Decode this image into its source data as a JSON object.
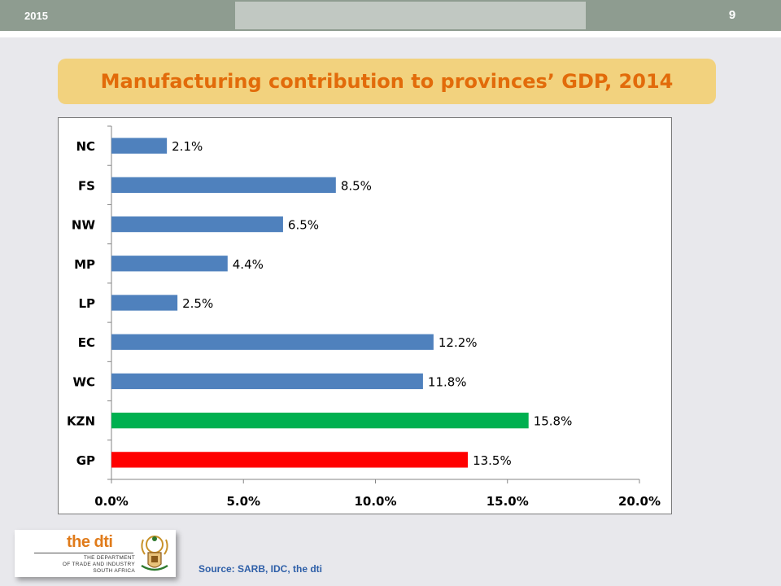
{
  "header": {
    "year": "2015",
    "page_number": "9"
  },
  "title": "Manufacturing contribution to provinces’ GDP, 2014",
  "source": "Source: SARB, IDC, the dti",
  "logo": {
    "name": "the dti",
    "subtitle_lines": [
      "THE DEPARTMENT",
      "OF TRADE AND INDUSTRY",
      "SOUTH AFRICA"
    ],
    "crest_icon": "south-africa-coat-of-arms-icon"
  },
  "colors": {
    "default_bar": "#4f81bd",
    "kzn_bar": "#00b050",
    "gp_bar": "#ff0000",
    "title_text": "#e26b0a",
    "title_banner": "#f2d27e"
  },
  "chart_data": {
    "type": "bar",
    "orientation": "horizontal",
    "title": "",
    "xlabel": "",
    "ylabel": "",
    "categories": [
      "NC",
      "FS",
      "NW",
      "MP",
      "LP",
      "EC",
      "WC",
      "KZN",
      "GP"
    ],
    "values": [
      2.1,
      8.5,
      6.5,
      4.4,
      2.5,
      12.2,
      11.8,
      15.8,
      13.5
    ],
    "data_labels": [
      "2.1%",
      "8.5%",
      "6.5%",
      "4.4%",
      "2.5%",
      "12.2%",
      "11.8%",
      "15.8%",
      "13.5%"
    ],
    "bar_colors": [
      "#4f81bd",
      "#4f81bd",
      "#4f81bd",
      "#4f81bd",
      "#4f81bd",
      "#4f81bd",
      "#4f81bd",
      "#00b050",
      "#ff0000"
    ],
    "xlim": [
      0,
      20
    ],
    "x_ticks": [
      0,
      5,
      10,
      15,
      20
    ],
    "x_tick_labels": [
      "0.0%",
      "5.0%",
      "10.0%",
      "15.0%",
      "20.0%"
    ],
    "grid": false,
    "legend": "none"
  }
}
